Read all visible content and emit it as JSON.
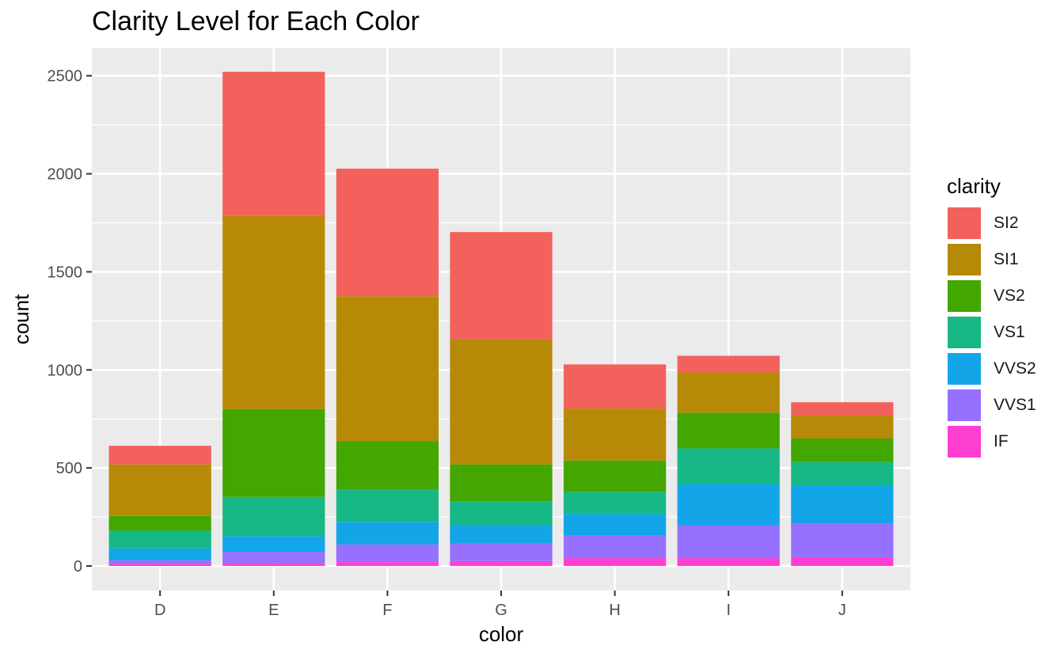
{
  "chart_data": {
    "type": "bar",
    "stacked": true,
    "title": "Clarity Level for Each Color",
    "xlabel": "color",
    "ylabel": "count",
    "legend_title": "clarity",
    "legend_position": "right",
    "grid": true,
    "ylim": [
      -125,
      2640
    ],
    "yticks": [
      0,
      500,
      1000,
      1500,
      2000,
      2500
    ],
    "categories": [
      "D",
      "E",
      "F",
      "G",
      "H",
      "I",
      "J"
    ],
    "series": [
      {
        "name": "IF",
        "color": "#FF3FD2",
        "values": [
          10,
          12,
          20,
          25,
          40,
          40,
          45
        ]
      },
      {
        "name": "VVS1",
        "color": "#9670FF",
        "values": [
          20,
          60,
          90,
          90,
          115,
          168,
          170
        ]
      },
      {
        "name": "VVS2",
        "color": "#12A5E8",
        "values": [
          60,
          80,
          115,
          95,
          110,
          210,
          195
        ]
      },
      {
        "name": "VS1",
        "color": "#17B885",
        "values": [
          90,
          200,
          165,
          118,
          113,
          182,
          120
        ]
      },
      {
        "name": "VS2",
        "color": "#44A600",
        "values": [
          75,
          448,
          246,
          190,
          160,
          182,
          120
        ]
      },
      {
        "name": "SI1",
        "color": "#B68A06",
        "values": [
          263,
          985,
          740,
          640,
          265,
          205,
          115
        ]
      },
      {
        "name": "SI2",
        "color": "#F3615D",
        "values": [
          95,
          735,
          650,
          545,
          225,
          85,
          70
        ]
      }
    ]
  }
}
